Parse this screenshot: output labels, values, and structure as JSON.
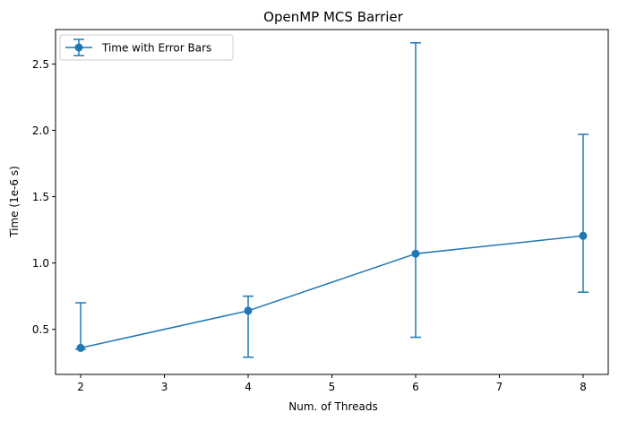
{
  "chart_data": {
    "type": "line",
    "title": "OpenMP MCS Barrier",
    "xlabel": "Num. of Threads",
    "ylabel": "Time (1e-6 s)",
    "xlim": [
      1.7,
      8.3
    ],
    "ylim": [
      0.16,
      2.76
    ],
    "xticks": [
      2,
      3,
      4,
      5,
      6,
      7,
      8
    ],
    "yticks": [
      0.5,
      1.0,
      1.5,
      2.0,
      2.5
    ],
    "ytick_labels": [
      "0.5",
      "1.0",
      "1.5",
      "2.0",
      "2.5"
    ],
    "legend_position": "top-left",
    "grid": false,
    "series": [
      {
        "name": "Time with Error Bars",
        "color": "#1f77b4",
        "marker": "circle",
        "x": [
          2,
          4,
          6,
          8
        ],
        "y": [
          0.36,
          0.64,
          1.07,
          1.205
        ],
        "y_low": [
          0.35,
          0.29,
          0.44,
          0.78
        ],
        "y_high": [
          0.7,
          0.75,
          2.66,
          1.97
        ]
      }
    ]
  }
}
